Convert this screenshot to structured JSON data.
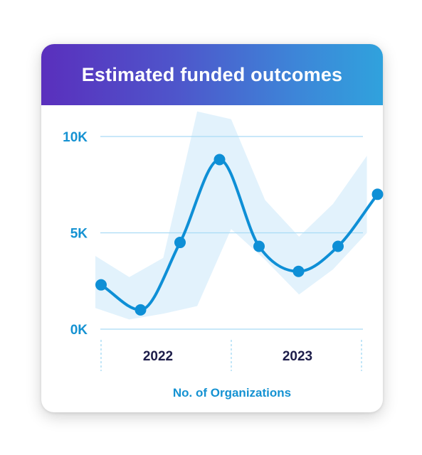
{
  "chart_data": {
    "type": "line",
    "title": "Estimated funded outcomes",
    "xlabel": "No. of Organizations",
    "ylabel": "",
    "ylim": [
      0,
      10000
    ],
    "y_ticks": [
      {
        "value": 0,
        "label": "0K"
      },
      {
        "value": 5000,
        "label": "5K"
      },
      {
        "value": 10000,
        "label": "10K"
      }
    ],
    "x_ticks": [
      "2022",
      "2023"
    ],
    "grid": true,
    "series": [
      {
        "values": [
          2300,
          1000,
          4500,
          8800,
          4300,
          3000,
          4300,
          7000
        ],
        "band_upper": [
          3800,
          2700,
          3700,
          11300,
          10900,
          6700,
          4800,
          6500,
          9000
        ],
        "band_lower": [
          1100,
          500,
          800,
          1200,
          5200,
          3600,
          1800,
          3100,
          5000
        ]
      }
    ],
    "colors": {
      "line": "#0e8fd6",
      "band": "#e2f2fc",
      "grid": "#a9dbf5",
      "tick_divider": "#a9dbf5"
    }
  }
}
